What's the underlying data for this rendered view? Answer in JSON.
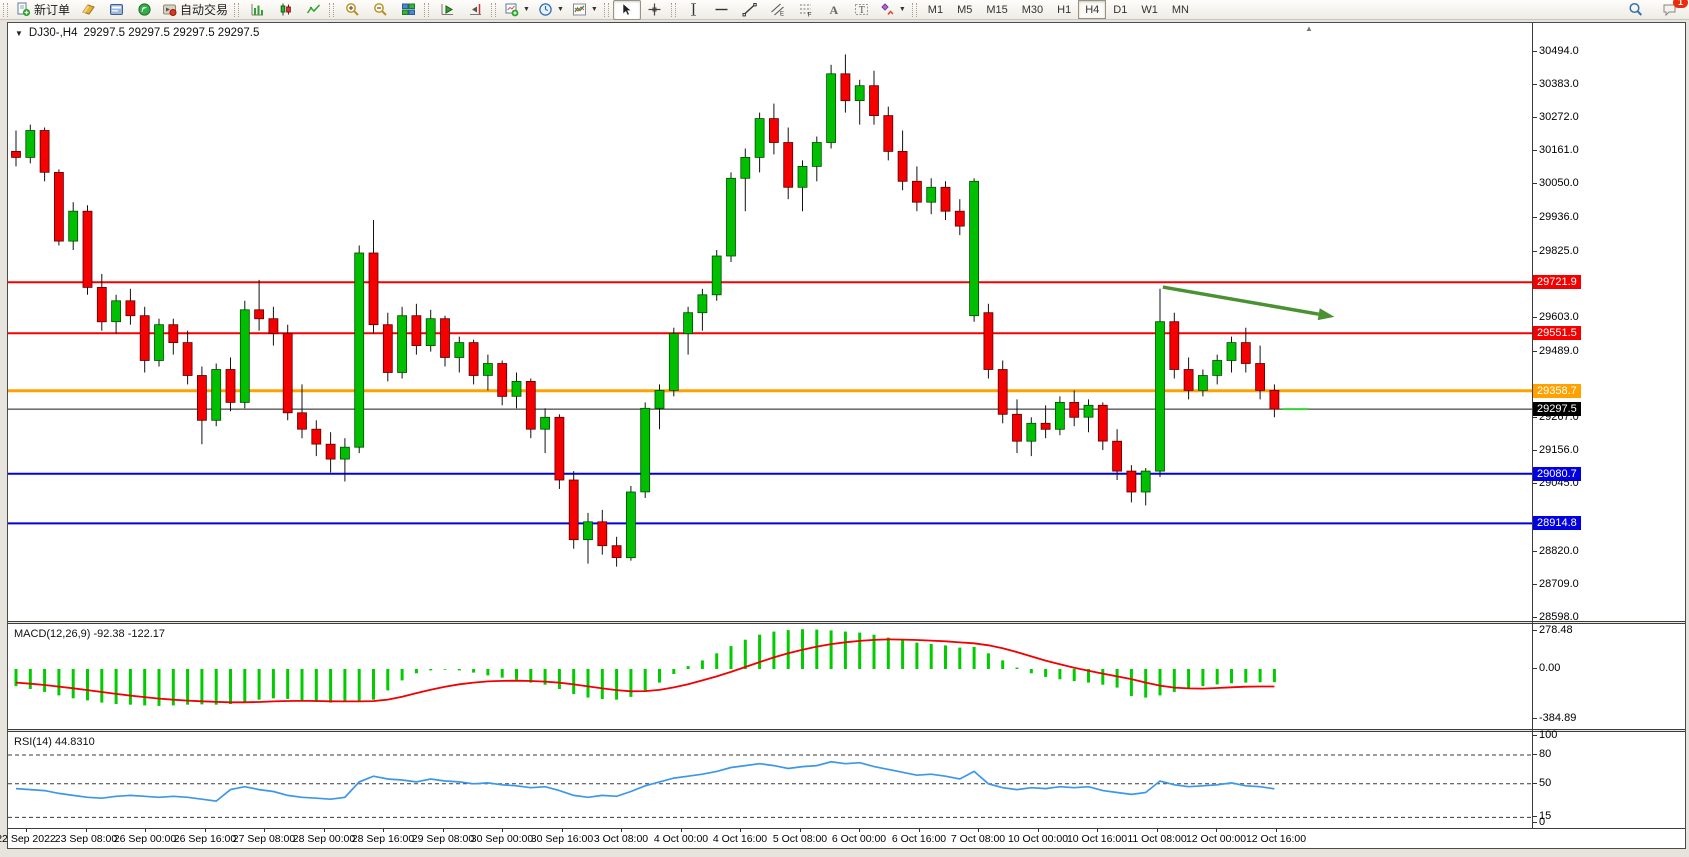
{
  "toolbar": {
    "new_order_label": "新订单",
    "autotrading_label": "自动交易",
    "groups": [
      {
        "name": "orders",
        "items": [
          {
            "name": "new-order-button",
            "icon": "doc-plus",
            "label": "新订单"
          },
          {
            "name": "quotes-button",
            "icon": "gold-book"
          },
          {
            "name": "terminal-button",
            "icon": "terminal"
          },
          {
            "name": "signals-button",
            "icon": "signal"
          },
          {
            "name": "autotrading-button",
            "icon": "autotrade",
            "label": "自动交易"
          }
        ]
      },
      {
        "name": "chart-types",
        "items": [
          {
            "name": "bar-chart-button",
            "icon": "chart-bars"
          },
          {
            "name": "candlestick-chart-button",
            "icon": "chart-candles"
          },
          {
            "name": "line-chart-button",
            "icon": "chart-line"
          }
        ]
      },
      {
        "name": "zoom",
        "items": [
          {
            "name": "zoom-in-button",
            "icon": "zoom-in"
          },
          {
            "name": "zoom-out-button",
            "icon": "zoom-out"
          },
          {
            "name": "tile-windows-button",
            "icon": "tiles"
          }
        ]
      },
      {
        "name": "scroll",
        "items": [
          {
            "name": "auto-scroll-button",
            "icon": "autoscroll"
          },
          {
            "name": "chart-shift-button",
            "icon": "chartshift"
          }
        ]
      },
      {
        "name": "new-objects",
        "items": [
          {
            "name": "new-chart-button",
            "icon": "newchart",
            "caret": true
          },
          {
            "name": "periods-button",
            "icon": "clock",
            "caret": true
          },
          {
            "name": "templates-button",
            "icon": "indicators",
            "caret": true
          }
        ]
      },
      {
        "name": "pointer",
        "items": [
          {
            "name": "cursor-button",
            "icon": "cursor",
            "pressed": true
          },
          {
            "name": "crosshair-button",
            "icon": "crosshair"
          }
        ]
      },
      {
        "name": "drawing",
        "items": [
          {
            "name": "vertical-line-button",
            "icon": "vline"
          },
          {
            "name": "horizontal-line-button",
            "icon": "hline"
          },
          {
            "name": "trendline-button",
            "icon": "trendline"
          },
          {
            "name": "equidistant-channel-button",
            "icon": "channel"
          },
          {
            "name": "fibonacci-button",
            "icon": "fib"
          },
          {
            "name": "text-button",
            "icon": "textA"
          },
          {
            "name": "text-label-button",
            "icon": "textT"
          },
          {
            "name": "arrows-button",
            "icon": "shapes",
            "caret": true
          }
        ]
      }
    ],
    "timeframes": [
      {
        "label": "M1",
        "active": false
      },
      {
        "label": "M5",
        "active": false
      },
      {
        "label": "M15",
        "active": false
      },
      {
        "label": "M30",
        "active": false
      },
      {
        "label": "H1",
        "active": false
      },
      {
        "label": "H4",
        "active": true
      },
      {
        "label": "D1",
        "active": false
      },
      {
        "label": "W1",
        "active": false
      },
      {
        "label": "MN",
        "active": false
      }
    ],
    "right": {
      "search_icon": "search",
      "chat_icon": "chat",
      "notification_count": "1"
    }
  },
  "chart": {
    "symbol_period": "DJ30-,H4",
    "ohlc_text": "29297.5 29297.5 29297.5 29297.5",
    "macd_label": "MACD(12,26,9) -92.38 -122.17",
    "rsi_label": "RSI(14) 44.8310",
    "shift_marker": "▲"
  },
  "price_axis": {
    "ticks": [
      "30494.0",
      "30383.0",
      "30272.0",
      "30161.0",
      "30050.0",
      "29936.0",
      "29825.0",
      "29603.0",
      "29489.0",
      "29267.0",
      "29156.0",
      "29045.0",
      "28820.0",
      "28709.0",
      "28598.0"
    ],
    "badges": [
      {
        "value": "29721.9",
        "color": "#f50000"
      },
      {
        "value": "29551.5",
        "color": "#f50000"
      },
      {
        "value": "29358.7",
        "color": "#ffa200"
      },
      {
        "value": "29297.5",
        "color": "#000000"
      },
      {
        "value": "29080.7",
        "color": "#0000e0"
      },
      {
        "value": "28914.8",
        "color": "#0000e0"
      }
    ]
  },
  "macd_axis": {
    "labels": [
      "278.48",
      "0.00",
      "-384.89"
    ]
  },
  "rsi_axis": {
    "labels": [
      "100",
      "80",
      "50",
      "15",
      "0"
    ],
    "dashed_levels": [
      80,
      50,
      15
    ]
  },
  "chart_data": {
    "type": "candlestick",
    "symbol": "DJ30-",
    "period": "H4",
    "current_price": 29297.5,
    "price_range": [
      28588,
      30590
    ],
    "x_labels": [
      "22 Sep 2022",
      "23 Sep 08:00",
      "26 Sep 00:00",
      "26 Sep 16:00",
      "27 Sep 08:00",
      "28 Sep 00:00",
      "28 Sep 16:00",
      "29 Sep 08:00",
      "30 Sep 00:00",
      "30 Sep 16:00",
      "3 Oct 08:00",
      "4 Oct 00:00",
      "4 Oct 16:00",
      "5 Oct 08:00",
      "6 Oct 00:00",
      "6 Oct 16:00",
      "7 Oct 08:00",
      "10 Oct 00:00",
      "10 Oct 16:00",
      "11 Oct 08:00",
      "12 Oct 00:00",
      "12 Oct 16:00"
    ],
    "hlines": [
      {
        "price": 29721.9,
        "color": "#f50000",
        "width": 2
      },
      {
        "price": 29551.5,
        "color": "#f50000",
        "width": 2
      },
      {
        "price": 29358.7,
        "color": "#ffa200",
        "width": 3
      },
      {
        "price": 29297.5,
        "color": "#1a1a1a",
        "width": 1
      },
      {
        "price": 29080.7,
        "color": "#0000e0",
        "width": 2
      },
      {
        "price": 28914.8,
        "color": "#0000e0",
        "width": 2
      }
    ],
    "price_marker": {
      "price": 29297.5,
      "color": "#35d435"
    },
    "arrow": {
      "from_index": 80.2,
      "from_price": 29706,
      "to_index": 92.2,
      "to_price": 29606,
      "color": "#4a9132"
    },
    "candles": [
      [
        30160,
        30230,
        30110,
        30140
      ],
      [
        30140,
        30250,
        30120,
        30230
      ],
      [
        30230,
        30240,
        30060,
        30090
      ],
      [
        30090,
        30100,
        29845,
        29860
      ],
      [
        29860,
        29990,
        29830,
        29960
      ],
      [
        29960,
        29980,
        29680,
        29705
      ],
      [
        29705,
        29750,
        29560,
        29590
      ],
      [
        29590,
        29680,
        29550,
        29660
      ],
      [
        29660,
        29700,
        29580,
        29610
      ],
      [
        29610,
        29640,
        29420,
        29460
      ],
      [
        29460,
        29600,
        29440,
        29580
      ],
      [
        29580,
        29600,
        29480,
        29520
      ],
      [
        29520,
        29560,
        29380,
        29410
      ],
      [
        29410,
        29440,
        29180,
        29260
      ],
      [
        29260,
        29450,
        29240,
        29430
      ],
      [
        29430,
        29470,
        29290,
        29320
      ],
      [
        29320,
        29660,
        29300,
        29630
      ],
      [
        29630,
        29730,
        29560,
        29600
      ],
      [
        29600,
        29640,
        29510,
        29550
      ],
      [
        29550,
        29580,
        29260,
        29285
      ],
      [
        29285,
        29380,
        29200,
        29230
      ],
      [
        29230,
        29260,
        29140,
        29180
      ],
      [
        29180,
        29220,
        29085,
        29130
      ],
      [
        29130,
        29200,
        29055,
        29170
      ],
      [
        29170,
        29845,
        29150,
        29820
      ],
      [
        29820,
        29930,
        29550,
        29580
      ],
      [
        29580,
        29620,
        29390,
        29420
      ],
      [
        29420,
        29640,
        29400,
        29610
      ],
      [
        29610,
        29650,
        29480,
        29510
      ],
      [
        29510,
        29630,
        29490,
        29600
      ],
      [
        29600,
        29610,
        29440,
        29470
      ],
      [
        29470,
        29540,
        29420,
        29520
      ],
      [
        29520,
        29530,
        29380,
        29410
      ],
      [
        29410,
        29480,
        29360,
        29450
      ],
      [
        29450,
        29460,
        29310,
        29340
      ],
      [
        29340,
        29420,
        29300,
        29390
      ],
      [
        29390,
        29400,
        29200,
        29230
      ],
      [
        29230,
        29300,
        29150,
        29270
      ],
      [
        29270,
        29280,
        29030,
        29060
      ],
      [
        29060,
        29090,
        28830,
        28860
      ],
      [
        28860,
        28950,
        28780,
        28920
      ],
      [
        28920,
        28960,
        28810,
        28840
      ],
      [
        28840,
        28870,
        28770,
        28800
      ],
      [
        28800,
        29040,
        28790,
        29020
      ],
      [
        29020,
        29320,
        29000,
        29300
      ],
      [
        29300,
        29380,
        29230,
        29360
      ],
      [
        29360,
        29570,
        29340,
        29550
      ],
      [
        29550,
        29640,
        29480,
        29620
      ],
      [
        29620,
        29700,
        29560,
        29680
      ],
      [
        29680,
        29830,
        29660,
        29810
      ],
      [
        29810,
        30090,
        29790,
        30070
      ],
      [
        30070,
        30170,
        29960,
        30140
      ],
      [
        30140,
        30290,
        30090,
        30270
      ],
      [
        30270,
        30320,
        30150,
        30190
      ],
      [
        30190,
        30240,
        30000,
        30040
      ],
      [
        30040,
        30130,
        29960,
        30110
      ],
      [
        30110,
        30210,
        30060,
        30190
      ],
      [
        30190,
        30450,
        30170,
        30420
      ],
      [
        30420,
        30485,
        30290,
        30330
      ],
      [
        30330,
        30400,
        30250,
        30380
      ],
      [
        30380,
        30430,
        30250,
        30280
      ],
      [
        30280,
        30310,
        30130,
        30160
      ],
      [
        30160,
        30230,
        30030,
        30060
      ],
      [
        30060,
        30110,
        29960,
        29990
      ],
      [
        29990,
        30070,
        29950,
        30040
      ],
      [
        30040,
        30060,
        29930,
        29960
      ],
      [
        29960,
        30000,
        29880,
        29910
      ],
      [
        29610,
        30070,
        29590,
        30060
      ],
      [
        29620,
        29650,
        29400,
        29430
      ],
      [
        29430,
        29460,
        29250,
        29280
      ],
      [
        29280,
        29330,
        29150,
        29190
      ],
      [
        29190,
        29270,
        29140,
        29250
      ],
      [
        29250,
        29310,
        29200,
        29230
      ],
      [
        29230,
        29340,
        29210,
        29320
      ],
      [
        29320,
        29360,
        29240,
        29270
      ],
      [
        29270,
        29330,
        29220,
        29310
      ],
      [
        29310,
        29320,
        29160,
        29190
      ],
      [
        29190,
        29230,
        29060,
        29090
      ],
      [
        29090,
        29110,
        28985,
        29020
      ],
      [
        29020,
        29100,
        28975,
        29090
      ],
      [
        29090,
        29700,
        29070,
        29590
      ],
      [
        29590,
        29620,
        29400,
        29430
      ],
      [
        29430,
        29470,
        29330,
        29360
      ],
      [
        29360,
        29430,
        29340,
        29410
      ],
      [
        29410,
        29480,
        29380,
        29460
      ],
      [
        29460,
        29540,
        29420,
        29520
      ],
      [
        29520,
        29570,
        29420,
        29450
      ],
      [
        29450,
        29510,
        29330,
        29360
      ],
      [
        29360,
        29380,
        29270,
        29297.5
      ]
    ],
    "macd": {
      "name": "MACD(12,26,9)",
      "current_main": -92.38,
      "current_signal": -122.17,
      "scale": [
        278.48,
        0.0,
        -384.89
      ],
      "histogram": [
        -120,
        -140,
        -160,
        -185,
        -205,
        -220,
        -235,
        -245,
        -250,
        -255,
        -258,
        -255,
        -250,
        -248,
        -250,
        -245,
        -230,
        -215,
        -205,
        -210,
        -220,
        -230,
        -235,
        -230,
        -225,
        -215,
        -150,
        -80,
        -30,
        -10,
        -5,
        -10,
        -25,
        -45,
        -60,
        -75,
        -95,
        -110,
        -140,
        -175,
        -200,
        -210,
        -215,
        -195,
        -150,
        -95,
        -35,
        20,
        60,
        110,
        160,
        205,
        240,
        262,
        272,
        278.48,
        276,
        270,
        262,
        255,
        240,
        220,
        200,
        185,
        175,
        165,
        150,
        155,
        110,
        60,
        10,
        -30,
        -55,
        -72,
        -85,
        -95,
        -110,
        -130,
        -190,
        -200,
        -185,
        -160,
        -140,
        -120,
        -108,
        -100,
        -95,
        -93,
        -92.38
      ],
      "signal": [
        -95,
        -103,
        -112,
        -123,
        -135,
        -148,
        -161,
        -174,
        -186,
        -197,
        -207,
        -215,
        -221,
        -226,
        -230,
        -233,
        -233,
        -231,
        -227,
        -224,
        -223,
        -224,
        -226,
        -227,
        -227,
        -225,
        -214,
        -194,
        -169,
        -145,
        -124,
        -107,
        -95,
        -87,
        -83,
        -82,
        -84,
        -88,
        -96,
        -108,
        -122,
        -136,
        -148,
        -156,
        -155,
        -146,
        -129,
        -107,
        -80,
        -52,
        -20,
        14,
        48,
        81,
        110,
        135,
        157,
        174,
        187,
        197,
        204,
        207,
        206,
        203,
        199,
        194,
        186,
        180,
        166,
        145,
        118,
        88,
        59,
        33,
        9,
        -12,
        -32,
        -52,
        -71,
        -95,
        -116,
        -130,
        -136,
        -137,
        -133,
        -128,
        -124,
        -122.5,
        -122.17
      ]
    },
    "rsi": {
      "name": "RSI(14)",
      "current": 44.831,
      "levels": [
        80,
        50,
        15
      ],
      "values": [
        45,
        44,
        43,
        40,
        38,
        36,
        35,
        37,
        38,
        37,
        36,
        37,
        36,
        34,
        32,
        44,
        47,
        44,
        42,
        38,
        36,
        35,
        34,
        36,
        52,
        58,
        55,
        54,
        52,
        55,
        53,
        52,
        50,
        51,
        49,
        48,
        46,
        47,
        43,
        38,
        36,
        38,
        37,
        42,
        48,
        52,
        56,
        58,
        60,
        63,
        67,
        69,
        71,
        69,
        66,
        68,
        69,
        73,
        71,
        72,
        68,
        65,
        62,
        59,
        60,
        58,
        55,
        63,
        50,
        46,
        44,
        46,
        45,
        47,
        46,
        47,
        43,
        41,
        39,
        41,
        53,
        49,
        47,
        48,
        49,
        51,
        48,
        47,
        44.83
      ]
    }
  }
}
